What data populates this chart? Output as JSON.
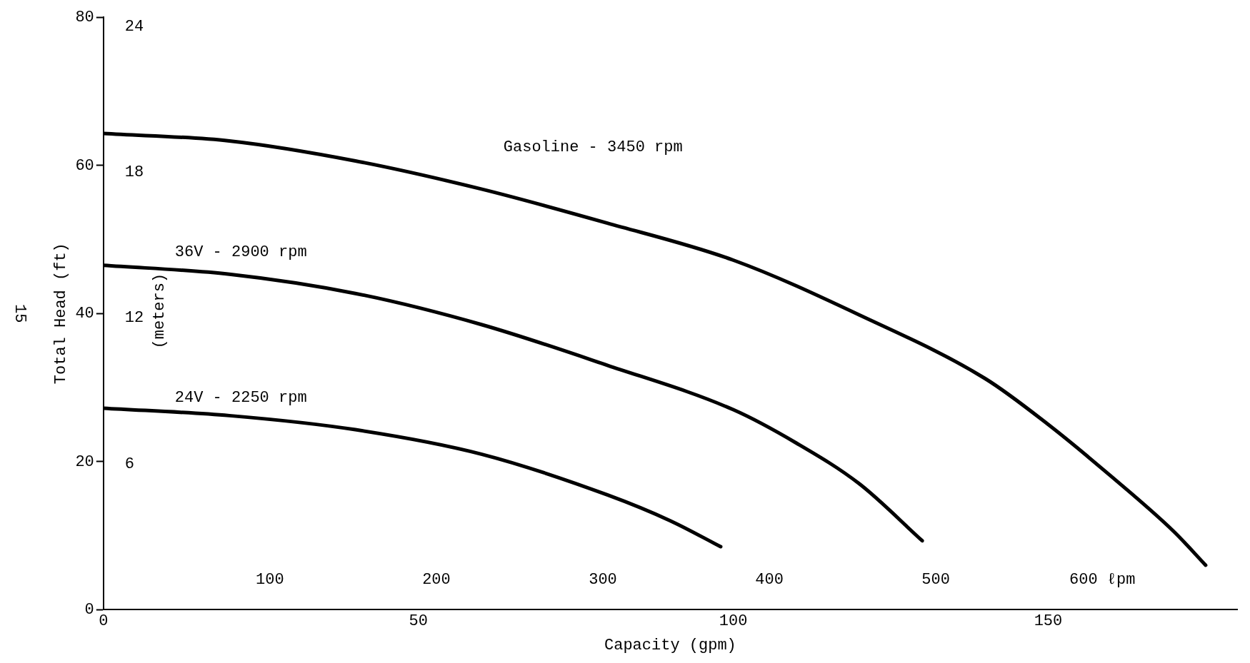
{
  "chart_data": {
    "type": "line",
    "xlabel": "Capacity (gpm)",
    "ylabel": "Total Head (ft)",
    "y2label": "(meters)",
    "xlim": [
      0,
      180
    ],
    "xticks": [
      0,
      50,
      100,
      150
    ],
    "ylim": [
      0,
      80
    ],
    "yticks": [
      0,
      20,
      40,
      60,
      80
    ],
    "y2lim": [
      0,
      24.38
    ],
    "y2ticks": [
      6,
      12,
      18,
      24
    ],
    "x2lim": [
      0,
      681
    ],
    "x2ticks": [
      100,
      200,
      300,
      400,
      500,
      {
        "value": 600,
        "label": "600 ℓpm"
      }
    ],
    "grid": false,
    "legend": false,
    "marker": "none",
    "line_style": "solid",
    "annotations": [
      "15"
    ],
    "series": [
      {
        "name": "Gasoline - 3450 rpm",
        "color": "#000000",
        "x": [
          0,
          20,
          40,
          60,
          80,
          100,
          120,
          140,
          150,
          160,
          170,
          175
        ],
        "values": [
          64.3,
          63.3,
          60.6,
          56.8,
          52.2,
          47.2,
          39.8,
          31.2,
          25,
          18,
          10.5,
          6
        ]
      },
      {
        "name": "36V - 2900 rpm",
        "color": "#000000",
        "x": [
          0,
          20,
          40,
          60,
          80,
          100,
          110,
          120,
          130
        ],
        "values": [
          46.5,
          45.3,
          42.7,
          38.5,
          33,
          27,
          22.5,
          17,
          9.3
        ]
      },
      {
        "name": "24V - 2250 rpm",
        "color": "#000000",
        "x": [
          0,
          20,
          40,
          60,
          80,
          90,
          98
        ],
        "values": [
          27.2,
          26.2,
          24.3,
          21,
          15.5,
          12,
          8.5
        ]
      }
    ]
  }
}
